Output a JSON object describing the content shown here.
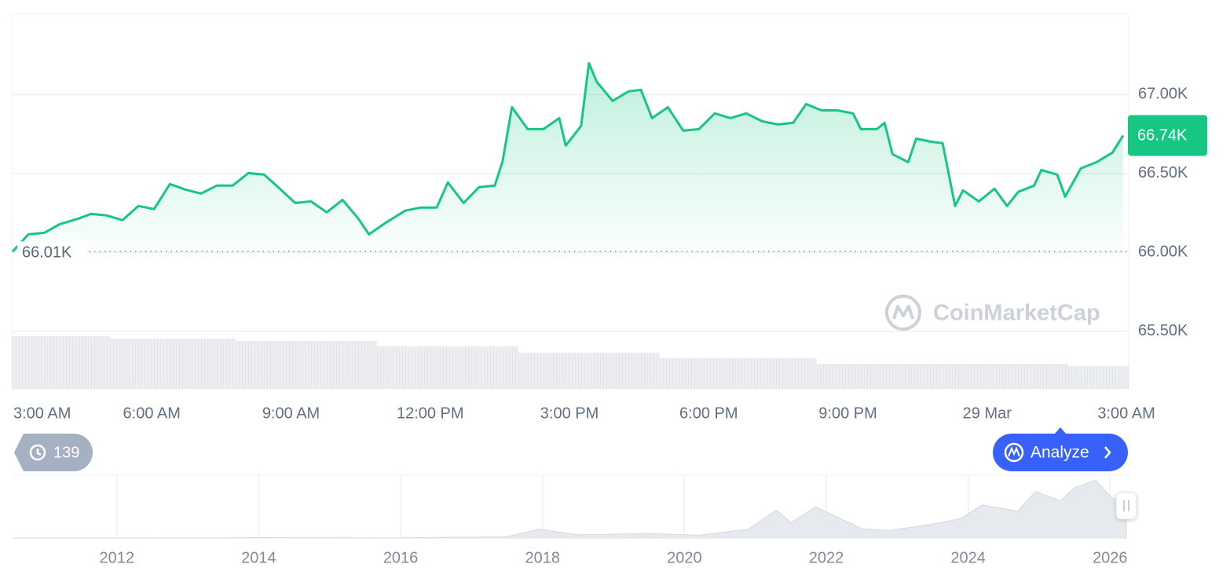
{
  "chart_data": [
    {
      "type": "area",
      "x": [
        0,
        0.34,
        0.68,
        1.02,
        1.42,
        1.69,
        2.03,
        2.37,
        2.71,
        3.05,
        3.39,
        3.72,
        4.06,
        4.4,
        4.74,
        5.08,
        5.42,
        5.76,
        6.09,
        6.43,
        6.77,
        7.11,
        7.45,
        7.68,
        8.02,
        8.46,
        8.8,
        9.14,
        9.38,
        9.72,
        10.05,
        10.39,
        10.56,
        10.76,
        11.1,
        11.44,
        11.78,
        11.92,
        12.25,
        12.42,
        12.59,
        12.93,
        13.27,
        13.54,
        13.78,
        14.12,
        14.45,
        14.79,
        15.13,
        15.47,
        15.81,
        16.15,
        16.49,
        16.82,
        17.1,
        17.43,
        17.77,
        18.11,
        18.28,
        18.62,
        18.79,
        18.96,
        19.3,
        19.47,
        19.8,
        20.04,
        20.31,
        20.48,
        20.82,
        21.16,
        21.43,
        21.67,
        22.01,
        22.17,
        22.51,
        22.68,
        23.02,
        23.36,
        23.7,
        23.93
      ],
      "series": [
        {
          "color": "#16c784",
          "values": [
            66005,
            66114,
            66124,
            66179,
            66214,
            66244,
            66234,
            66204,
            66294,
            66274,
            66433,
            66398,
            66373,
            66423,
            66423,
            66502,
            66493,
            66403,
            66313,
            66323,
            66254,
            66333,
            66214,
            66114,
            66184,
            66264,
            66284,
            66284,
            66443,
            66313,
            66413,
            66423,
            66577,
            66920,
            66781,
            66781,
            66851,
            66677,
            66801,
            67199,
            67080,
            66960,
            67020,
            67030,
            66851,
            66920,
            66771,
            66781,
            66881,
            66851,
            66881,
            66831,
            66811,
            66821,
            66940,
            66900,
            66900,
            66881,
            66781,
            66781,
            66821,
            66622,
            66572,
            66721,
            66701,
            66692,
            66294,
            66393,
            66323,
            66403,
            66294,
            66383,
            66423,
            66522,
            66493,
            66353,
            66532,
            66572,
            66632,
            66741
          ]
        }
      ],
      "xlim": [
        0,
        24.05
      ],
      "ylim": [
        65135,
        67510
      ],
      "yticks": [
        {
          "value": 65500,
          "label": "65.50K"
        },
        {
          "value": 66000,
          "label": "66.00K"
        },
        {
          "value": 66500,
          "label": "66.50K"
        },
        {
          "value": 67000,
          "label": "67.00K"
        }
      ],
      "xticks": [
        {
          "value": 0,
          "label": "3:00 AM"
        },
        {
          "value": 3,
          "label": "6:00 AM"
        },
        {
          "value": 6,
          "label": "9:00 AM"
        },
        {
          "value": 9,
          "label": "12:00 PM"
        },
        {
          "value": 12,
          "label": "3:00 PM"
        },
        {
          "value": 15,
          "label": "6:00 PM"
        },
        {
          "value": 18,
          "label": "9:00 PM"
        },
        {
          "value": 21,
          "label": "29 Mar"
        },
        {
          "value": 24,
          "label": "3:00 AM"
        }
      ],
      "grid": true,
      "open_label": "66.01K",
      "last_label": "66.74K"
    },
    {
      "type": "area",
      "x": [
        2010.53,
        2013,
        2014,
        2016,
        2017.5,
        2017.95,
        2018.5,
        2019.5,
        2020.2,
        2020.9,
        2021.3,
        2021.5,
        2021.85,
        2022.5,
        2022.9,
        2023.5,
        2023.9,
        2024.2,
        2024.7,
        2024.95,
        2025.3,
        2025.5,
        2025.8,
        2026.0,
        2026.24
      ],
      "values": [
        0,
        100,
        800,
        400,
        3000,
        19000,
        7000,
        10000,
        6000,
        19000,
        60000,
        33000,
        67000,
        20000,
        16500,
        30000,
        42000,
        71000,
        58000,
        100000,
        80000,
        108000,
        124000,
        90000,
        66740
      ],
      "color": "#e6e9ed",
      "xlim": [
        2010.53,
        2026.24
      ],
      "ylim": [
        0,
        135000
      ],
      "xticks": [
        2012,
        2014,
        2016,
        2018,
        2020,
        2022,
        2024,
        2026
      ],
      "grid": true
    }
  ],
  "watermark": "CoinMarketCap",
  "history_count": "139",
  "analyze_button": "Analyze"
}
